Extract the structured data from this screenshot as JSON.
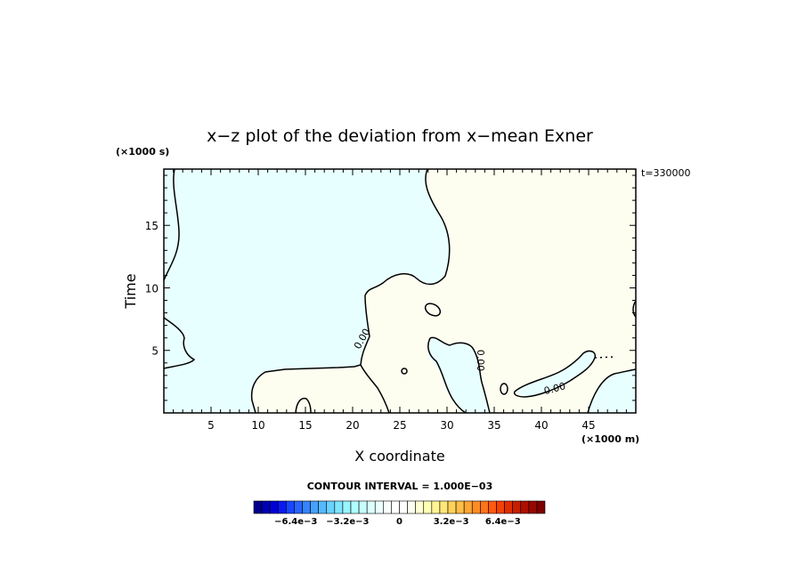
{
  "chart_data": {
    "type": "contour",
    "title": "x−z plot of the deviation from x−mean Exner",
    "xlabel": "X coordinate",
    "ylabel": "Time",
    "x_unit_label": "(×1000 m)",
    "y_unit_label": "(×1000 s)",
    "time_label": "t=330000",
    "xlim": [
      0,
      50
    ],
    "ylim": [
      0,
      19.5
    ],
    "x_ticks": [
      5,
      10,
      15,
      20,
      25,
      30,
      35,
      40,
      45
    ],
    "y_ticks": [
      5,
      10,
      15
    ],
    "contour_interval_label": "CONTOUR INTERVAL = 1.000E−03",
    "contour_labels": [
      {
        "text": "0.00",
        "x": 21.3,
        "y": 5.8,
        "angle": -60
      },
      {
        "text": "0.00",
        "x": 33.2,
        "y": 4.2,
        "angle": 90
      },
      {
        "text": "0.00",
        "x": 41.5,
        "y": 1.7,
        "angle": -15
      }
    ],
    "regions": [
      {
        "sign": "negative",
        "color": "#e8ffff"
      },
      {
        "sign": "positive",
        "color": "#fdfdf0"
      }
    ],
    "colorbar": {
      "colors": [
        "#00008c",
        "#0000b4",
        "#0000d7",
        "#0a19f0",
        "#1946ff",
        "#2864ff",
        "#3782ff",
        "#46a0ff",
        "#55b9ff",
        "#69d2ff",
        "#80e6ff",
        "#96f5ff",
        "#b0ffff",
        "#c8ffff",
        "#dcffff",
        "#ecffff",
        "#f8ffff",
        "#ffffff",
        "#ffffff",
        "#ffffee",
        "#ffffd2",
        "#ffffb4",
        "#fff596",
        "#ffe678",
        "#ffd25a",
        "#ffbe46",
        "#ffa532",
        "#ff8c23",
        "#ff7319",
        "#ff5a0f",
        "#f54105",
        "#e12d00",
        "#c81e00",
        "#ae1000",
        "#960800",
        "#7d0000"
      ],
      "tick_labels": [
        {
          "text": "−6.4e−3",
          "value": -0.0064
        },
        {
          "text": "−3.2e−3",
          "value": -0.0032
        },
        {
          "text": "0",
          "value": 0
        },
        {
          "text": "3.2e−3",
          "value": 0.0032
        },
        {
          "text": "6.4e−3",
          "value": 0.0064
        }
      ],
      "vmin": -0.009,
      "vmax": 0.009
    }
  }
}
